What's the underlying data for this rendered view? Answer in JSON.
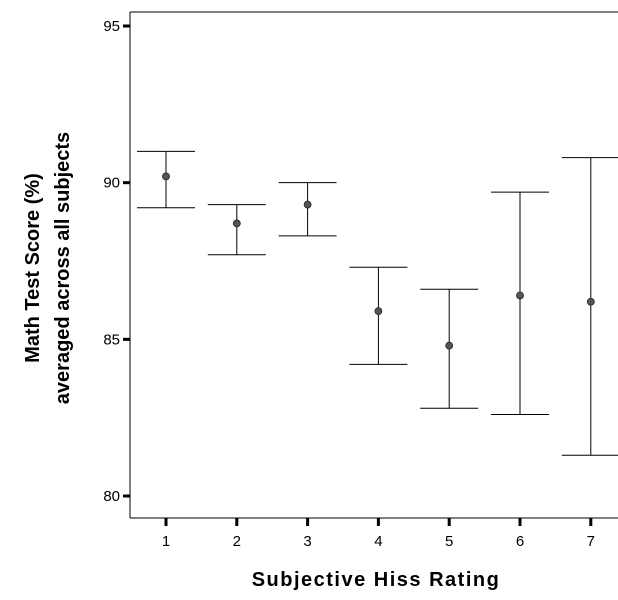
{
  "chart_data": {
    "type": "errorbar",
    "title": "",
    "xlabel": "Subjective Hiss Rating",
    "ylabel": [
      "Math Test Score (%)",
      "averaged across all subjects"
    ],
    "categories": [
      "1",
      "2",
      "3",
      "4",
      "5",
      "6",
      "7"
    ],
    "mean": [
      90.2,
      88.7,
      89.3,
      85.9,
      84.8,
      86.4,
      86.2
    ],
    "upper": [
      91.0,
      89.3,
      90.0,
      87.3,
      86.6,
      89.7,
      90.8
    ],
    "lower": [
      89.2,
      87.7,
      88.3,
      84.2,
      82.8,
      82.6,
      81.3
    ],
    "ylim": [
      80,
      95
    ],
    "yticks": [
      "80",
      "85",
      "90",
      "95"
    ],
    "grid": false,
    "colors": {
      "axis": "#000000",
      "error_bar": "#000000",
      "marker": "#555555"
    }
  }
}
